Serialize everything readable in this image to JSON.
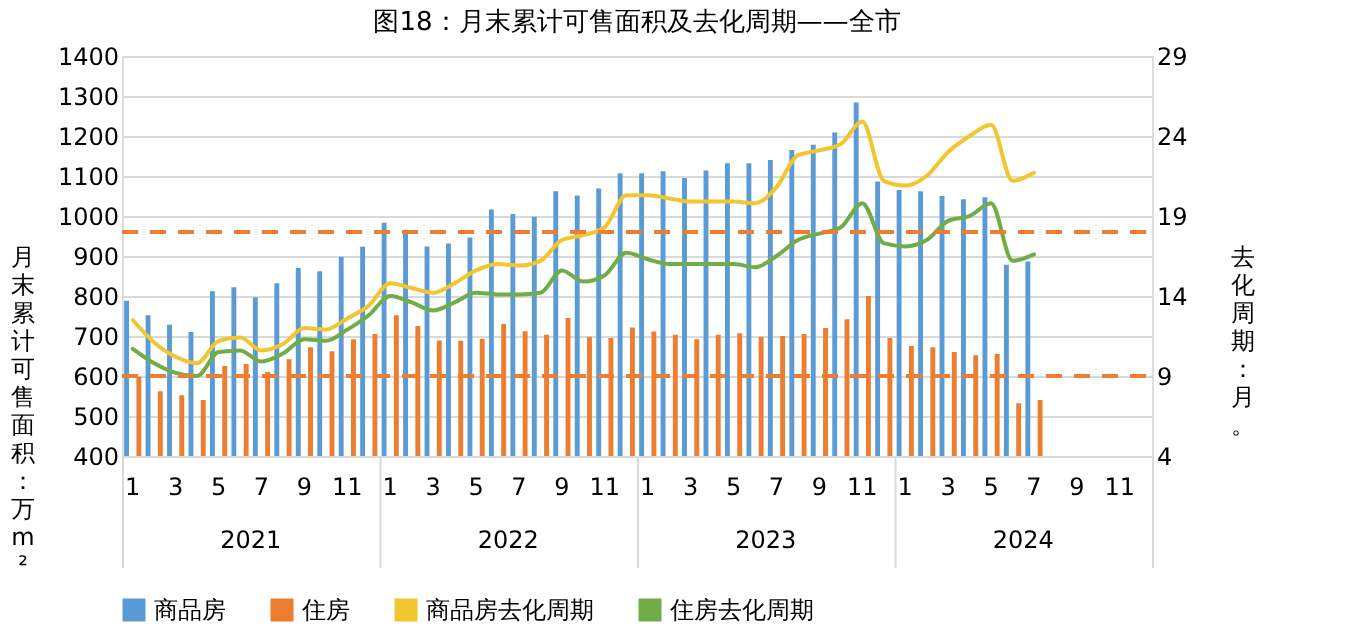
{
  "chart_data": {
    "type": "bar",
    "title": "图18：月末累计可售面积及去化周期——全市",
    "ylabel": "月末累计可售面积：万m²",
    "y2label": "去化周期：月。",
    "categories": [
      "1",
      null,
      "3",
      null,
      "5",
      null,
      "7",
      null,
      "9",
      null,
      "11",
      null,
      "1",
      null,
      "3",
      null,
      "5",
      null,
      "7",
      null,
      "9",
      null,
      "11",
      null,
      "1",
      null,
      "3",
      null,
      "5",
      null,
      "7",
      null,
      "9",
      null,
      "11",
      null,
      "1",
      null,
      "3",
      null,
      "5",
      null,
      "7",
      null,
      "9",
      null,
      "11",
      null
    ],
    "annotations": [
      "2021",
      "2022",
      "2023",
      "2024"
    ],
    "series": [
      {
        "name": "商品房",
        "color": "#5b9bd5",
        "values": [
          788,
          752,
          728,
          710,
          812,
          822,
          796,
          832,
          870,
          862,
          898,
          923,
          983,
          956,
          924,
          931,
          946,
          1016,
          1005,
          998,
          1062,
          1051,
          1069,
          1107,
          1107,
          1112,
          1095,
          1114,
          1132,
          1132,
          1140,
          1165,
          1178,
          1209,
          1284,
          1086,
          1065,
          1062,
          1050,
          1042,
          1047,
          878,
          886,
          null,
          null,
          null,
          null,
          null
        ]
      },
      {
        "name": "住房",
        "color": "#ed7d31",
        "values": [
          598,
          562,
          552,
          540,
          625,
          630,
          610,
          642,
          672,
          662,
          692,
          705,
          752,
          725,
          689,
          688,
          693,
          730,
          712,
          703,
          745,
          698,
          695,
          721,
          711,
          703,
          692,
          703,
          707,
          698,
          700,
          705,
          720,
          742,
          800,
          695,
          675,
          672,
          660,
          652,
          655,
          532,
          540,
          null,
          null,
          null,
          null,
          null
        ]
      },
      {
        "name": "商品房去化周期",
        "type": "line",
        "axis": "y2",
        "color": "#f2c62f",
        "values": [
          12.5,
          11.1,
          10.2,
          9.8,
          11.2,
          11.4,
          10.6,
          11.0,
          12.0,
          11.9,
          12.6,
          13.4,
          14.8,
          14.5,
          14.2,
          14.8,
          15.6,
          16.0,
          15.9,
          16.2,
          17.5,
          17.8,
          18.3,
          20.3,
          20.3,
          20.1,
          19.9,
          19.9,
          19.9,
          19.8,
          20.8,
          22.8,
          23.1,
          23.5,
          24.9,
          21.2,
          20.9,
          21.5,
          23.0,
          24.0,
          24.7,
          21.2,
          21.7,
          null,
          null,
          null,
          null,
          null
        ]
      },
      {
        "name": "住房去化周期",
        "type": "line",
        "axis": "y2",
        "color": "#70ad47",
        "values": [
          10.7,
          9.8,
          9.2,
          9.0,
          10.5,
          10.6,
          9.9,
          10.4,
          11.3,
          11.2,
          11.9,
          12.8,
          14.0,
          13.6,
          13.1,
          13.6,
          14.2,
          14.1,
          14.1,
          14.2,
          15.6,
          14.9,
          15.3,
          16.7,
          16.3,
          16.0,
          16.0,
          16.0,
          16.0,
          15.8,
          16.5,
          17.5,
          17.9,
          18.3,
          19.8,
          17.3,
          17.1,
          17.5,
          18.7,
          19.0,
          19.8,
          16.2,
          16.6,
          null,
          null,
          null,
          null,
          null
        ]
      }
    ],
    "ylim": [
      400,
      1400
    ],
    "yticks": [
      400,
      500,
      600,
      700,
      800,
      900,
      1000,
      1100,
      1200,
      1300,
      1400
    ],
    "y2lim": [
      4,
      29
    ],
    "y2ticks": [
      4,
      9,
      14,
      19,
      24,
      29
    ],
    "ref_lines": [
      {
        "axis": "y2",
        "value": 18,
        "color": "#ed7d31",
        "line_style": "dashed"
      },
      {
        "axis": "y2",
        "value": 9,
        "color": "#ed7d31",
        "line_style": "dashed"
      }
    ],
    "grid": "y",
    "legend": "bottom"
  }
}
